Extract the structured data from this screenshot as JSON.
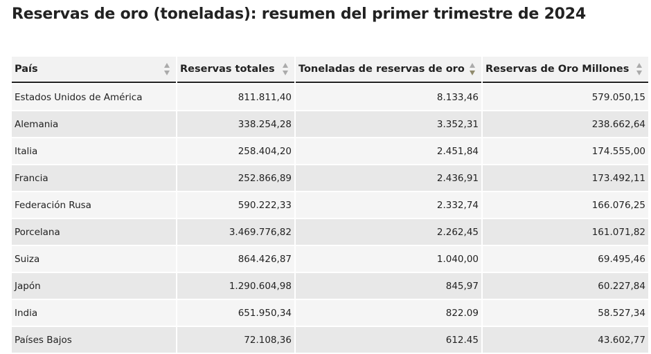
{
  "page": {
    "title": "Reservas de oro (toneladas): resumen del primer trimestre de 2024"
  },
  "colors": {
    "sort_inactive": "#aaaaaa",
    "sort_active": "#8f8a6c",
    "header_bg": "#f2f2f2",
    "row_light": "#f5f5f5",
    "row_dark": "#e8e8e8"
  },
  "table": {
    "sorted_column": 2,
    "sort_direction": "descending",
    "headers": [
      "País",
      "Reservas totales",
      "Toneladas de reservas de oro",
      "Reservas de Oro Millones"
    ],
    "rows": [
      [
        "Estados Unidos de América",
        "811.811,40",
        "8.133,46",
        "579.050,15"
      ],
      [
        "Alemania",
        "338.254,28",
        "3.352,31",
        "238.662,64"
      ],
      [
        "Italia",
        "258.404,20",
        "2.451,84",
        "174.555,00"
      ],
      [
        "Francia",
        "252.866,89",
        "2.436,91",
        "173.492,11"
      ],
      [
        "Federación Rusa",
        "590.222,33",
        "2.332,74",
        "166.076,25"
      ],
      [
        "Porcelana",
        "3.469.776,82",
        "2.262,45",
        "161.071,82"
      ],
      [
        "Suiza",
        "864.426,87",
        "1.040,00",
        "69.495,46"
      ],
      [
        "Japón",
        "1.290.604,98",
        "845,97",
        "60.227,84"
      ],
      [
        "India",
        "651.950,34",
        "822.09",
        "58.527,34"
      ],
      [
        "Países Bajos",
        "72.108,36",
        "612.45",
        "43.602,77"
      ]
    ]
  },
  "chart_data": {
    "type": "table",
    "title": "Reservas de oro (toneladas): resumen del primer trimestre de 2024",
    "columns": [
      "País",
      "Reservas totales",
      "Toneladas de reservas de oro",
      "Reservas de Oro Millones"
    ],
    "rows": [
      [
        "Estados Unidos de América",
        811811.4,
        8133.46,
        579050.15
      ],
      [
        "Alemania",
        338254.28,
        3352.31,
        238662.64
      ],
      [
        "Italia",
        258404.2,
        2451.84,
        174555.0
      ],
      [
        "Francia",
        252866.89,
        2436.91,
        173492.11
      ],
      [
        "Federación Rusa",
        590222.33,
        2332.74,
        166076.25
      ],
      [
        "Porcelana",
        3469776.82,
        2262.45,
        161071.82
      ],
      [
        "Suiza",
        864426.87,
        1040.0,
        69495.46
      ],
      [
        "Japón",
        1290604.98,
        845.97,
        60227.84
      ],
      [
        "India",
        651950.34,
        822.09,
        58527.34
      ],
      [
        "Países Bajos",
        72108.36,
        612.45,
        43602.77
      ]
    ]
  }
}
